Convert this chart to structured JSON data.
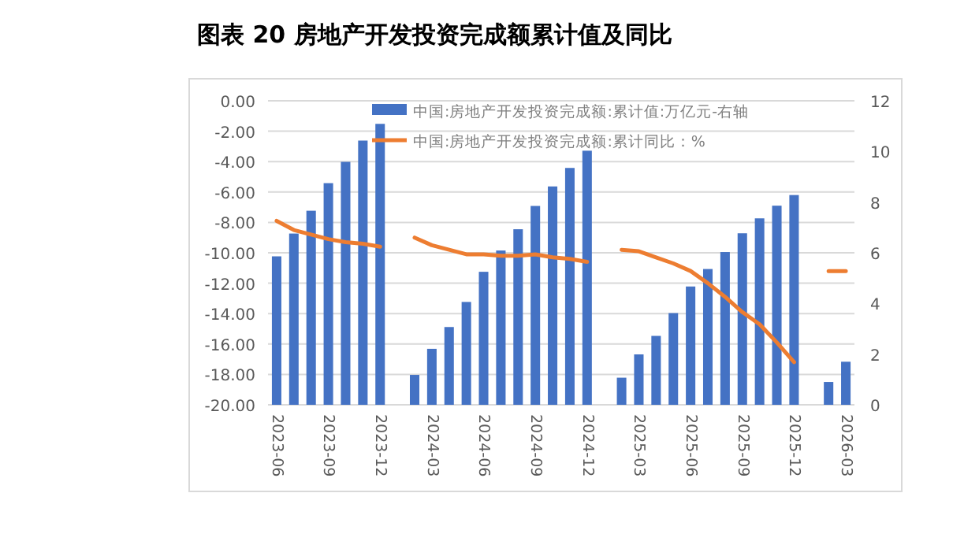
{
  "chart_data": {
    "type": "bar",
    "title": "图表 20  房地产开发投资完成额累计值及同比",
    "categories": [
      "2023-06",
      null,
      null,
      "2023-09",
      null,
      null,
      "2023-12",
      null,
      null,
      "2024-03",
      null,
      null,
      "2024-06",
      null,
      null,
      "2024-09",
      null,
      null,
      "2024-12",
      null,
      null,
      "2025-03",
      null,
      null,
      "2025-06",
      null,
      null,
      "2025-09",
      null,
      null,
      "2025-12",
      null,
      null,
      "2026-03"
    ],
    "series": [
      {
        "name": "中国:房地产开发投资完成额:累计值:万亿元-右轴",
        "axis": "y2",
        "color": "#4472c4",
        "values": [
          5.86,
          6.76,
          7.66,
          8.75,
          9.59,
          10.43,
          11.09,
          null,
          1.18,
          2.21,
          3.07,
          4.06,
          5.25,
          6.09,
          6.93,
          7.85,
          8.62,
          9.35,
          10.03,
          null,
          1.07,
          1.99,
          2.72,
          3.62,
          4.67,
          5.36,
          6.03,
          6.77,
          7.36,
          7.86,
          8.28,
          null,
          0.9,
          1.7
        ]
      },
      {
        "name": "中国:房地产开发投资完成额:累计同比：%",
        "type": "line",
        "color": "#ed7d31",
        "values": [
          -7.9,
          -8.5,
          -8.8,
          -9.1,
          -9.3,
          -9.4,
          -9.6,
          null,
          -9.0,
          -9.5,
          -9.8,
          -10.1,
          -10.1,
          -10.2,
          -10.2,
          -10.1,
          -10.3,
          -10.4,
          -10.6,
          null,
          -9.8,
          -9.9,
          -10.3,
          -10.7,
          -11.2,
          -12.0,
          -12.9,
          -13.9,
          -14.7,
          -15.9,
          -17.2,
          null,
          -11.2,
          -11.2
        ]
      }
    ],
    "ylim": [
      -20,
      0
    ],
    "yticks": [
      {
        "value": -20,
        "label": "-20.00"
      },
      {
        "value": -18,
        "label": "-18.00"
      },
      {
        "value": -16,
        "label": "-16.00"
      },
      {
        "value": -14,
        "label": "-14.00"
      },
      {
        "value": -12,
        "label": "-12.00"
      },
      {
        "value": -10,
        "label": "-10.00"
      },
      {
        "value": -8,
        "label": "-8.00"
      },
      {
        "value": -6,
        "label": "-6.00"
      },
      {
        "value": -4,
        "label": "-4.00"
      },
      {
        "value": -2,
        "label": "-2.00"
      },
      {
        "value": 0,
        "label": "0.00"
      }
    ],
    "y2lim": [
      0,
      12
    ],
    "y2ticks": [
      0,
      2,
      4,
      6,
      8,
      10,
      12
    ],
    "grid": "y",
    "legend": "top right",
    "marker": "none",
    "line_style": "solid"
  }
}
